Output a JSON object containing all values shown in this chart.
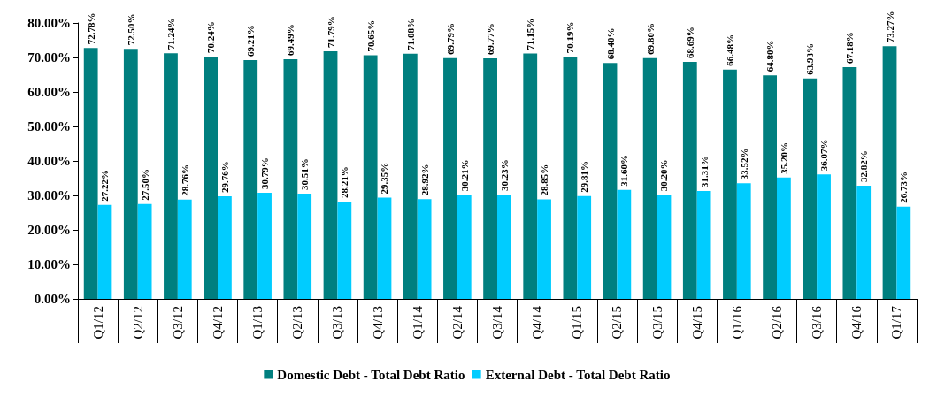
{
  "chart_data": {
    "type": "bar",
    "categories": [
      "Q1/12",
      "Q2/12",
      "Q3/12",
      "Q4/12",
      "Q1/13",
      "Q2/13",
      "Q3/13",
      "Q4/13",
      "Q1/14",
      "Q2/14",
      "Q3/14",
      "Q4/14",
      "Q1/15",
      "Q2/15",
      "Q3/15",
      "Q4/15",
      "Q1/16",
      "Q2/16",
      "Q3/16",
      "Q4/16",
      "Q1/17"
    ],
    "series": [
      {
        "name": "Domestic Debt - Total Debt Ratio",
        "color": "#007f7f",
        "values": [
          72.78,
          72.5,
          71.24,
          70.24,
          69.21,
          69.49,
          71.79,
          70.65,
          71.08,
          69.79,
          69.77,
          71.15,
          70.19,
          68.4,
          69.8,
          68.69,
          66.48,
          64.8,
          63.93,
          67.18,
          73.27
        ],
        "value_labels": [
          "72.78%",
          "72.50%",
          "71.24%",
          "70.24%",
          "69.21%",
          "69.49%",
          "71.79%",
          "70.65%",
          "71.08%",
          "69.79%",
          "69.77%",
          "71.15%",
          "70.19%",
          "68.40%",
          "69.80%",
          "68.69%",
          "66.48%",
          "64.80%",
          "63.93%",
          "67.18%",
          "73.27%"
        ]
      },
      {
        "name": "External Debt - Total Debt Ratio",
        "color": "#00ccff",
        "values": [
          27.22,
          27.5,
          28.76,
          29.76,
          30.79,
          30.51,
          28.21,
          29.35,
          28.92,
          30.21,
          30.23,
          28.85,
          29.81,
          31.6,
          30.2,
          31.31,
          33.52,
          35.2,
          36.07,
          32.82,
          26.73
        ],
        "value_labels": [
          "27.22%",
          "27.50%",
          "28.76%",
          "29.76%",
          "30.79%",
          "30.51%",
          "28.21%",
          "29.35%",
          "28.92%",
          "30.21%",
          "30.23%",
          "28.85%",
          "29.81%",
          "31.60%",
          "30.20%",
          "31.31%",
          "33.52%",
          "35.20%",
          "36.07%",
          "32.82%",
          "26.73%"
        ]
      }
    ],
    "ylim": [
      0,
      80
    ],
    "yticks": [
      {
        "value": 0,
        "label": "0.00%"
      },
      {
        "value": 10,
        "label": "10.00%"
      },
      {
        "value": 20,
        "label": "20.00%"
      },
      {
        "value": 30,
        "label": "30.00%"
      },
      {
        "value": 40,
        "label": "40.00%"
      },
      {
        "value": 50,
        "label": "50.00%"
      },
      {
        "value": 60,
        "label": "60.00%"
      },
      {
        "value": 70,
        "label": "70.00%"
      },
      {
        "value": 80,
        "label": "80.00%"
      }
    ],
    "grid": false,
    "legend": "bottom"
  }
}
